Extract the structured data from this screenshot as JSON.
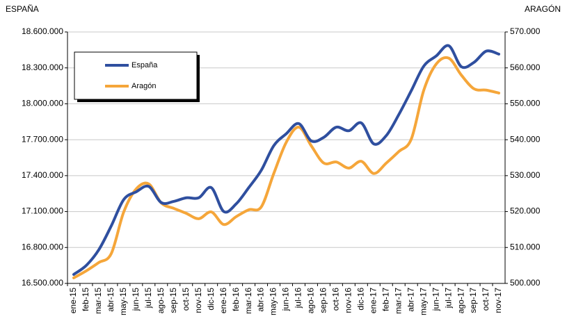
{
  "chart_data": {
    "type": "line",
    "y_label": "ESPAÑA",
    "y2_label": "ARAGÓN",
    "categories": [
      "ene-15",
      "feb-15",
      "mar-15",
      "abr-15",
      "may-15",
      "jun-15",
      "jul-15",
      "ago-15",
      "sep-15",
      "oct-15",
      "nov-15",
      "dic-15",
      "ene-16",
      "feb-16",
      "mar-16",
      "abr-16",
      "may-16",
      "jun-16",
      "jul-16",
      "ago-16",
      "sep-16",
      "oct-16",
      "nov-16",
      "dic-16",
      "ene-17",
      "feb-17",
      "mar-17",
      "abr-17",
      "may-17",
      "jun-17",
      "jul-17",
      "ago-17",
      "sep-17",
      "oct-17",
      "nov-17"
    ],
    "series": [
      {
        "name": "España",
        "color": "#2f4f9f",
        "axis": "y",
        "values": [
          16575000,
          16650000,
          16780000,
          16980000,
          17200000,
          17265000,
          17310000,
          17175000,
          17185000,
          17215000,
          17215000,
          17300000,
          17100000,
          17165000,
          17300000,
          17445000,
          17650000,
          17750000,
          17835000,
          17690000,
          17720000,
          17805000,
          17775000,
          17840000,
          17665000,
          17735000,
          17910000,
          18110000,
          18315000,
          18400000,
          18485000,
          18310000,
          18345000,
          18440000,
          18415000
        ]
      },
      {
        "name": "Aragón",
        "color": "#f5a63a",
        "axis": "y2",
        "values": [
          501550,
          503500,
          505800,
          508300,
          519900,
          526300,
          527700,
          522400,
          520900,
          519500,
          518000,
          519900,
          516400,
          518600,
          520500,
          521300,
          530600,
          539300,
          543500,
          538300,
          533500,
          533800,
          532100,
          534000,
          530600,
          533500,
          536700,
          540200,
          553800,
          561100,
          562700,
          558000,
          554200,
          553800,
          553000
        ]
      }
    ],
    "ylim": [
      16500000,
      18600000
    ],
    "yticks": [
      {
        "value": 16500000,
        "label": "16.500.000"
      },
      {
        "value": 16800000,
        "label": "16.800.000"
      },
      {
        "value": 17100000,
        "label": "17.100.000"
      },
      {
        "value": 17400000,
        "label": "17.400.000"
      },
      {
        "value": 17700000,
        "label": "17.700.000"
      },
      {
        "value": 18000000,
        "label": "18.000.000"
      },
      {
        "value": 18300000,
        "label": "18.300.000"
      },
      {
        "value": 18600000,
        "label": "18.600.000"
      }
    ],
    "y2lim": [
      500000,
      570000
    ],
    "y2ticks": [
      {
        "value": 500000,
        "label": "500.000"
      },
      {
        "value": 510000,
        "label": "510.000"
      },
      {
        "value": 520000,
        "label": "520.000"
      },
      {
        "value": 530000,
        "label": "530.000"
      },
      {
        "value": 540000,
        "label": "540.000"
      },
      {
        "value": 550000,
        "label": "550.000"
      },
      {
        "value": 560000,
        "label": "560.000"
      },
      {
        "value": 570000,
        "label": "570.000"
      }
    ],
    "grid": true,
    "legend": "top-left"
  }
}
